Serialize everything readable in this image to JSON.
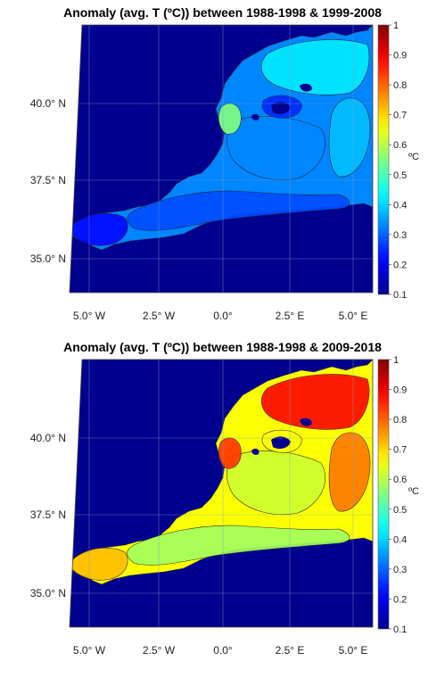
{
  "chart_data": [
    {
      "type": "heatmap",
      "title": "Anomaly (avg. T (ºC)) between 1988-1998 & 1999-2008",
      "x_tick_labels": [
        "5.0° W",
        "2.5° W",
        "0.0°",
        "2.5° E",
        "5.0° E"
      ],
      "y_tick_labels": [
        "40.0° N",
        "37.5° N",
        "35.0° N"
      ],
      "colorbar": {
        "label": "ºC",
        "range": [
          0.1,
          1
        ],
        "ticks": [
          "1",
          "0.9",
          "0.8",
          "0.7",
          "0.6",
          "0.5",
          "0.4",
          "0.3",
          "0.2",
          "0.1"
        ],
        "colormap": "jet"
      },
      "region_values": {
        "northern_basin": 0.42,
        "coastal_east": 0.38,
        "central_basin": 0.33,
        "island_contours": 0.25,
        "southern_coast": 0.28,
        "alboran_west": 0.22,
        "patch_near_40N": 0.55,
        "background_land": 0.1
      }
    },
    {
      "type": "heatmap",
      "title": "Anomaly (avg. T (ºC)) between 1988-1998 & 2009-2018",
      "x_tick_labels": [
        "5.0° W",
        "2.5° W",
        "0.0°",
        "2.5° E",
        "5.0° E"
      ],
      "y_tick_labels": [
        "40.0° N",
        "37.5° N",
        "35.0° N"
      ],
      "colorbar": {
        "label": "ºC",
        "range": [
          0.1,
          1
        ],
        "ticks": [
          "1",
          "0.9",
          "0.8",
          "0.7",
          "0.6",
          "0.5",
          "0.4",
          "0.3",
          "0.2",
          "0.1"
        ],
        "colormap": "jet"
      },
      "region_values": {
        "northern_basin": 0.88,
        "coastal_east": 0.78,
        "central_basin": 0.62,
        "island_contours": 0.66,
        "southern_coast": 0.58,
        "alboran_west": 0.72,
        "patch_near_40N": 0.84,
        "background_land": 0.1
      }
    }
  ],
  "colors": {
    "land": "#0d1a8c",
    "jet_stops": [
      "#00008f",
      "#0000ff",
      "#0080ff",
      "#00ffff",
      "#80ff80",
      "#ffff00",
      "#ff8000",
      "#ff0000",
      "#800000"
    ]
  }
}
